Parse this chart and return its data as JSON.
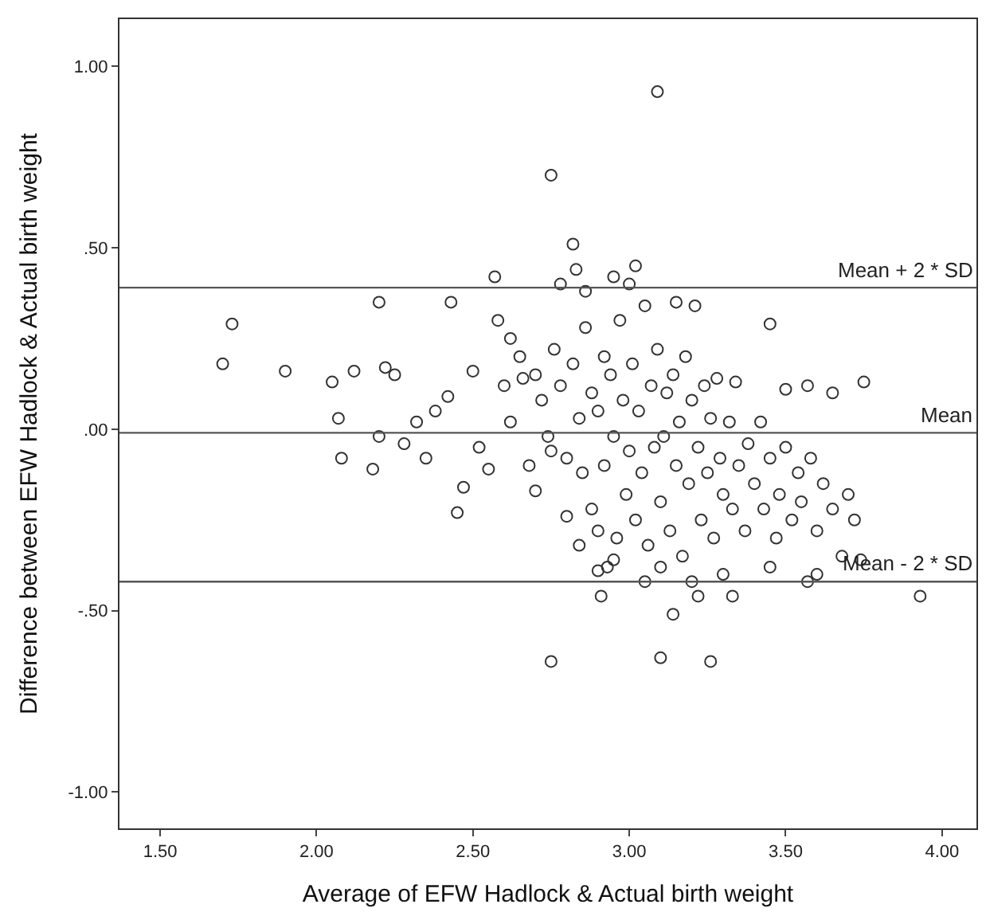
{
  "chart_data": {
    "type": "scatter",
    "xlabel": "Average of EFW Hadlock & Actual birth weight",
    "ylabel": "Difference between EFW Hadlock & Actual birth weight",
    "xlim": [
      1.37,
      4.11
    ],
    "ylim": [
      -1.1,
      1.13
    ],
    "xticks": [
      {
        "value": 1.5,
        "label": "1.50"
      },
      {
        "value": 2.0,
        "label": "2.00"
      },
      {
        "value": 2.5,
        "label": "2.50"
      },
      {
        "value": 3.0,
        "label": "3.00"
      },
      {
        "value": 3.5,
        "label": "3.50"
      },
      {
        "value": 4.0,
        "label": "4.00"
      }
    ],
    "yticks": [
      {
        "value": -1.0,
        "label": "-1.00"
      },
      {
        "value": -0.5,
        "label": "-.50"
      },
      {
        "value": 0,
        "label": ".00"
      },
      {
        "value": 0.5,
        "label": ".50"
      },
      {
        "value": 1.0,
        "label": "1.00"
      }
    ],
    "marker": "circle",
    "ref_lines": [
      {
        "axis": "y",
        "value": 0.39,
        "label": "Mean + 2 * SD",
        "color": "#555555"
      },
      {
        "axis": "y",
        "value": -0.01,
        "label": "Mean",
        "color": "#555555"
      },
      {
        "axis": "y",
        "value": -0.42,
        "label": "Mean - 2 * SD",
        "color": "#555555"
      }
    ],
    "series": [
      {
        "color": "#333333",
        "x": [
          3.09,
          2.75,
          2.82,
          2.83,
          2.57,
          1.7,
          1.73,
          1.9,
          2.2,
          2.43,
          3.45,
          3.75,
          3.65,
          3.57,
          3.5,
          3.93,
          2.75,
          3.1,
          3.26,
          3.14,
          3.22,
          3.33,
          2.91,
          2.9,
          2.93,
          3.74,
          3.6,
          3.57,
          2.05,
          2.07,
          2.08,
          2.12,
          2.18,
          2.2,
          2.25,
          2.28,
          2.32,
          2.35,
          2.38,
          2.42,
          2.45,
          2.47,
          2.5,
          2.52,
          2.55,
          2.6,
          2.62,
          2.65,
          2.7,
          2.75,
          2.22,
          2.7,
          2.72,
          2.74,
          2.76,
          2.78,
          2.8,
          2.82,
          2.84,
          2.85,
          2.86,
          2.88,
          2.88,
          2.9,
          2.9,
          2.92,
          2.92,
          2.94,
          2.95,
          2.96,
          2.97,
          2.98,
          2.99,
          3.0,
          3.0,
          3.01,
          3.02,
          3.03,
          3.04,
          3.05,
          3.06,
          3.07,
          3.08,
          3.09,
          3.1,
          3.11,
          3.12,
          3.13,
          3.14,
          3.15,
          3.16,
          3.17,
          3.18,
          3.19,
          3.2,
          3.21,
          3.22,
          3.23,
          3.24,
          3.25,
          3.26,
          3.27,
          3.28,
          3.29,
          3.3,
          3.32,
          3.33,
          3.34,
          3.35,
          3.37,
          3.38,
          3.4,
          3.42,
          3.43,
          3.45,
          3.47,
          3.48,
          3.5,
          3.52,
          3.54,
          3.55,
          3.58,
          3.6,
          3.62,
          3.65,
          3.68,
          3.7,
          3.72,
          2.58,
          2.62,
          2.66,
          2.68,
          2.78,
          2.86,
          2.95,
          3.02,
          3.15,
          2.8,
          2.84,
          2.95,
          3.05,
          3.1,
          3.2,
          3.3,
          3.45
        ],
        "values": [
          0.93,
          0.7,
          0.51,
          0.44,
          0.42,
          0.18,
          0.29,
          0.16,
          0.35,
          0.35,
          0.29,
          0.13,
          0.1,
          0.12,
          0.11,
          -0.46,
          -0.64,
          -0.63,
          -0.64,
          -0.51,
          -0.46,
          -0.46,
          -0.46,
          -0.39,
          -0.38,
          -0.36,
          -0.4,
          -0.42,
          0.13,
          0.03,
          -0.08,
          0.16,
          -0.11,
          -0.02,
          0.15,
          -0.04,
          0.02,
          -0.08,
          0.05,
          0.09,
          -0.23,
          -0.16,
          0.16,
          -0.05,
          -0.11,
          0.12,
          0.02,
          0.2,
          -0.17,
          -0.06,
          0.17,
          0.15,
          0.08,
          -0.02,
          0.22,
          0.12,
          -0.08,
          0.18,
          0.03,
          -0.12,
          0.28,
          0.1,
          -0.22,
          0.05,
          -0.28,
          0.2,
          -0.1,
          0.15,
          -0.02,
          -0.3,
          0.3,
          0.08,
          -0.18,
          0.4,
          -0.06,
          0.18,
          -0.25,
          0.05,
          -0.12,
          0.34,
          -0.32,
          0.12,
          -0.05,
          0.22,
          -0.2,
          -0.02,
          0.1,
          -0.28,
          0.15,
          -0.1,
          0.02,
          -0.35,
          0.2,
          -0.15,
          0.08,
          0.34,
          -0.05,
          -0.25,
          0.12,
          -0.12,
          0.03,
          -0.3,
          0.14,
          -0.08,
          -0.18,
          0.02,
          -0.22,
          0.13,
          -0.1,
          -0.28,
          -0.04,
          -0.15,
          0.02,
          -0.22,
          -0.08,
          -0.3,
          -0.18,
          -0.05,
          -0.25,
          -0.12,
          -0.2,
          -0.08,
          -0.28,
          -0.15,
          -0.22,
          -0.35,
          -0.18,
          -0.25,
          0.3,
          0.25,
          0.14,
          -0.1,
          0.4,
          0.38,
          0.42,
          0.45,
          0.35,
          -0.24,
          -0.32,
          -0.36,
          -0.42,
          -0.38,
          -0.42,
          -0.4,
          -0.38
        ]
      }
    ]
  }
}
